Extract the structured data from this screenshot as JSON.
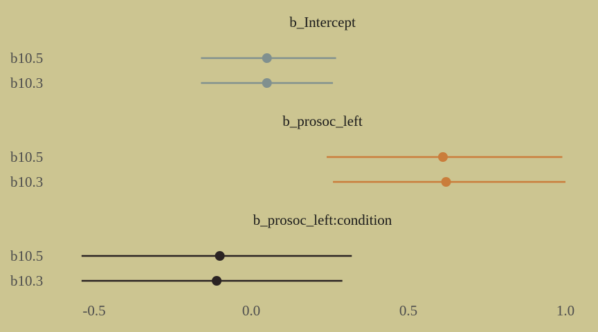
{
  "chart_data": {
    "type": "pointrange",
    "x_ticks": [
      -0.5,
      0.0,
      0.5,
      1.0
    ],
    "x_tick_labels": [
      "-0.5",
      "0.0",
      "0.5",
      "1.0"
    ],
    "xlim": [
      -0.62,
      1.04
    ],
    "grid": false,
    "legend": "none",
    "panels": [
      {
        "title": "b_Intercept",
        "color": "#80908F",
        "rows": [
          {
            "label": "b10.5",
            "estimate": 0.05,
            "lower": -0.16,
            "upper": 0.27
          },
          {
            "label": "b10.3",
            "estimate": 0.05,
            "lower": -0.16,
            "upper": 0.26
          }
        ]
      },
      {
        "title": "b_prosoc_left",
        "color": "#CA7D3B",
        "rows": [
          {
            "label": "b10.5",
            "estimate": 0.61,
            "lower": 0.24,
            "upper": 0.99
          },
          {
            "label": "b10.3",
            "estimate": 0.62,
            "lower": 0.26,
            "upper": 1.0
          }
        ]
      },
      {
        "title": "b_prosoc_left:condition",
        "color": "#2A2323",
        "rows": [
          {
            "label": "b10.5",
            "estimate": -0.1,
            "lower": -0.54,
            "upper": 0.32
          },
          {
            "label": "b10.3",
            "estimate": -0.11,
            "lower": -0.54,
            "upper": 0.29
          }
        ]
      }
    ]
  }
}
